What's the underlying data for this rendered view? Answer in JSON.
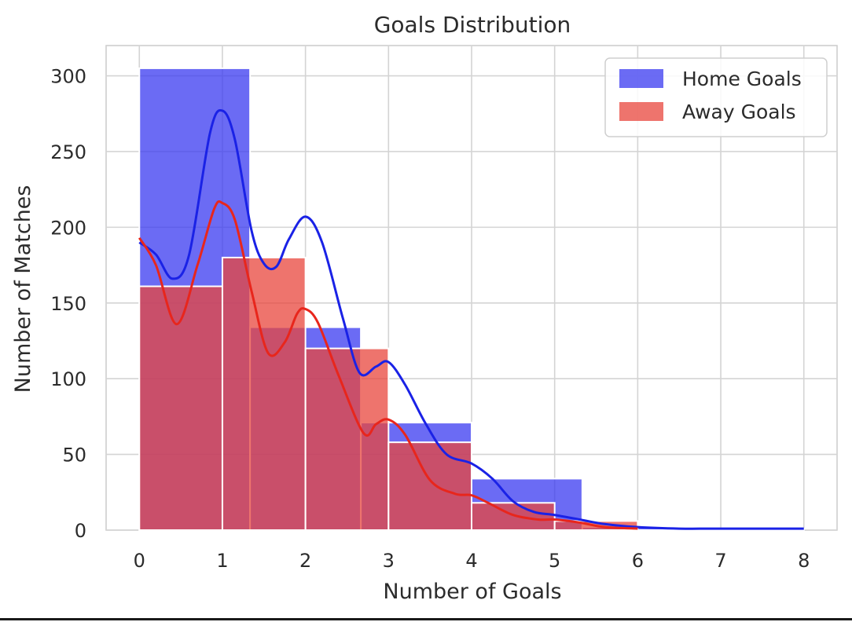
{
  "chart_data": {
    "type": "bar",
    "title": "Goals Distribution",
    "xlabel": "Number of Goals",
    "ylabel": "Number of Matches",
    "xlim": [
      -0.4,
      8.4
    ],
    "ylim": [
      0,
      320
    ],
    "xticks": [
      "0",
      "1",
      "2",
      "3",
      "4",
      "5",
      "6",
      "7",
      "8"
    ],
    "yticks": [
      "0",
      "50",
      "100",
      "150",
      "200",
      "250",
      "300"
    ],
    "grid": true,
    "legend_position": "top-right",
    "series": [
      {
        "name": "Home Goals",
        "color": "#3a3af0",
        "bins": [
          {
            "x0": 0,
            "x1": 1.333,
            "count": 305
          },
          {
            "x0": 1.333,
            "x1": 2.667,
            "count": 134
          },
          {
            "x0": 2.667,
            "x1": 4.0,
            "count": 71
          },
          {
            "x0": 4.0,
            "x1": 5.333,
            "count": 34
          },
          {
            "x0": 5.333,
            "x1": 6.667,
            "count": 2
          },
          {
            "x0": 6.667,
            "x1": 8.0,
            "count": 1
          }
        ],
        "kde": [
          [
            0,
            190
          ],
          [
            0.2,
            182
          ],
          [
            0.4,
            166
          ],
          [
            0.6,
            182
          ],
          [
            0.85,
            262
          ],
          [
            1.0,
            277
          ],
          [
            1.15,
            258
          ],
          [
            1.35,
            198
          ],
          [
            1.5,
            176
          ],
          [
            1.65,
            174
          ],
          [
            1.8,
            192
          ],
          [
            2.0,
            207
          ],
          [
            2.2,
            190
          ],
          [
            2.45,
            140
          ],
          [
            2.65,
            104
          ],
          [
            2.85,
            108
          ],
          [
            3.0,
            111
          ],
          [
            3.2,
            96
          ],
          [
            3.45,
            70
          ],
          [
            3.7,
            50
          ],
          [
            4.0,
            44
          ],
          [
            4.25,
            34
          ],
          [
            4.5,
            19
          ],
          [
            4.75,
            12
          ],
          [
            5.0,
            10
          ],
          [
            5.3,
            7
          ],
          [
            5.6,
            4
          ],
          [
            6.0,
            2
          ],
          [
            6.5,
            1
          ],
          [
            7.0,
            1
          ],
          [
            8.0,
            1
          ]
        ]
      },
      {
        "name": "Away Goals",
        "color": "#e8453c",
        "bins": [
          {
            "x0": 0,
            "x1": 1,
            "count": 161
          },
          {
            "x0": 1,
            "x1": 2,
            "count": 180
          },
          {
            "x0": 2,
            "x1": 3,
            "count": 120
          },
          {
            "x0": 3,
            "x1": 4,
            "count": 58
          },
          {
            "x0": 4,
            "x1": 5,
            "count": 18
          },
          {
            "x0": 5,
            "x1": 6,
            "count": 6
          }
        ],
        "kde": [
          [
            0,
            193
          ],
          [
            0.2,
            175
          ],
          [
            0.45,
            136
          ],
          [
            0.7,
            175
          ],
          [
            0.9,
            212
          ],
          [
            1.0,
            216
          ],
          [
            1.15,
            205
          ],
          [
            1.35,
            158
          ],
          [
            1.55,
            117
          ],
          [
            1.75,
            124
          ],
          [
            1.9,
            143
          ],
          [
            2.0,
            146
          ],
          [
            2.15,
            137
          ],
          [
            2.4,
            102
          ],
          [
            2.7,
            64
          ],
          [
            2.85,
            70
          ],
          [
            3.0,
            73
          ],
          [
            3.2,
            63
          ],
          [
            3.5,
            33
          ],
          [
            3.8,
            24
          ],
          [
            4.0,
            23
          ],
          [
            4.2,
            18
          ],
          [
            4.5,
            10
          ],
          [
            4.8,
            7
          ],
          [
            5.0,
            7
          ],
          [
            5.3,
            5
          ],
          [
            5.6,
            2
          ],
          [
            6.0,
            1
          ]
        ]
      }
    ]
  }
}
